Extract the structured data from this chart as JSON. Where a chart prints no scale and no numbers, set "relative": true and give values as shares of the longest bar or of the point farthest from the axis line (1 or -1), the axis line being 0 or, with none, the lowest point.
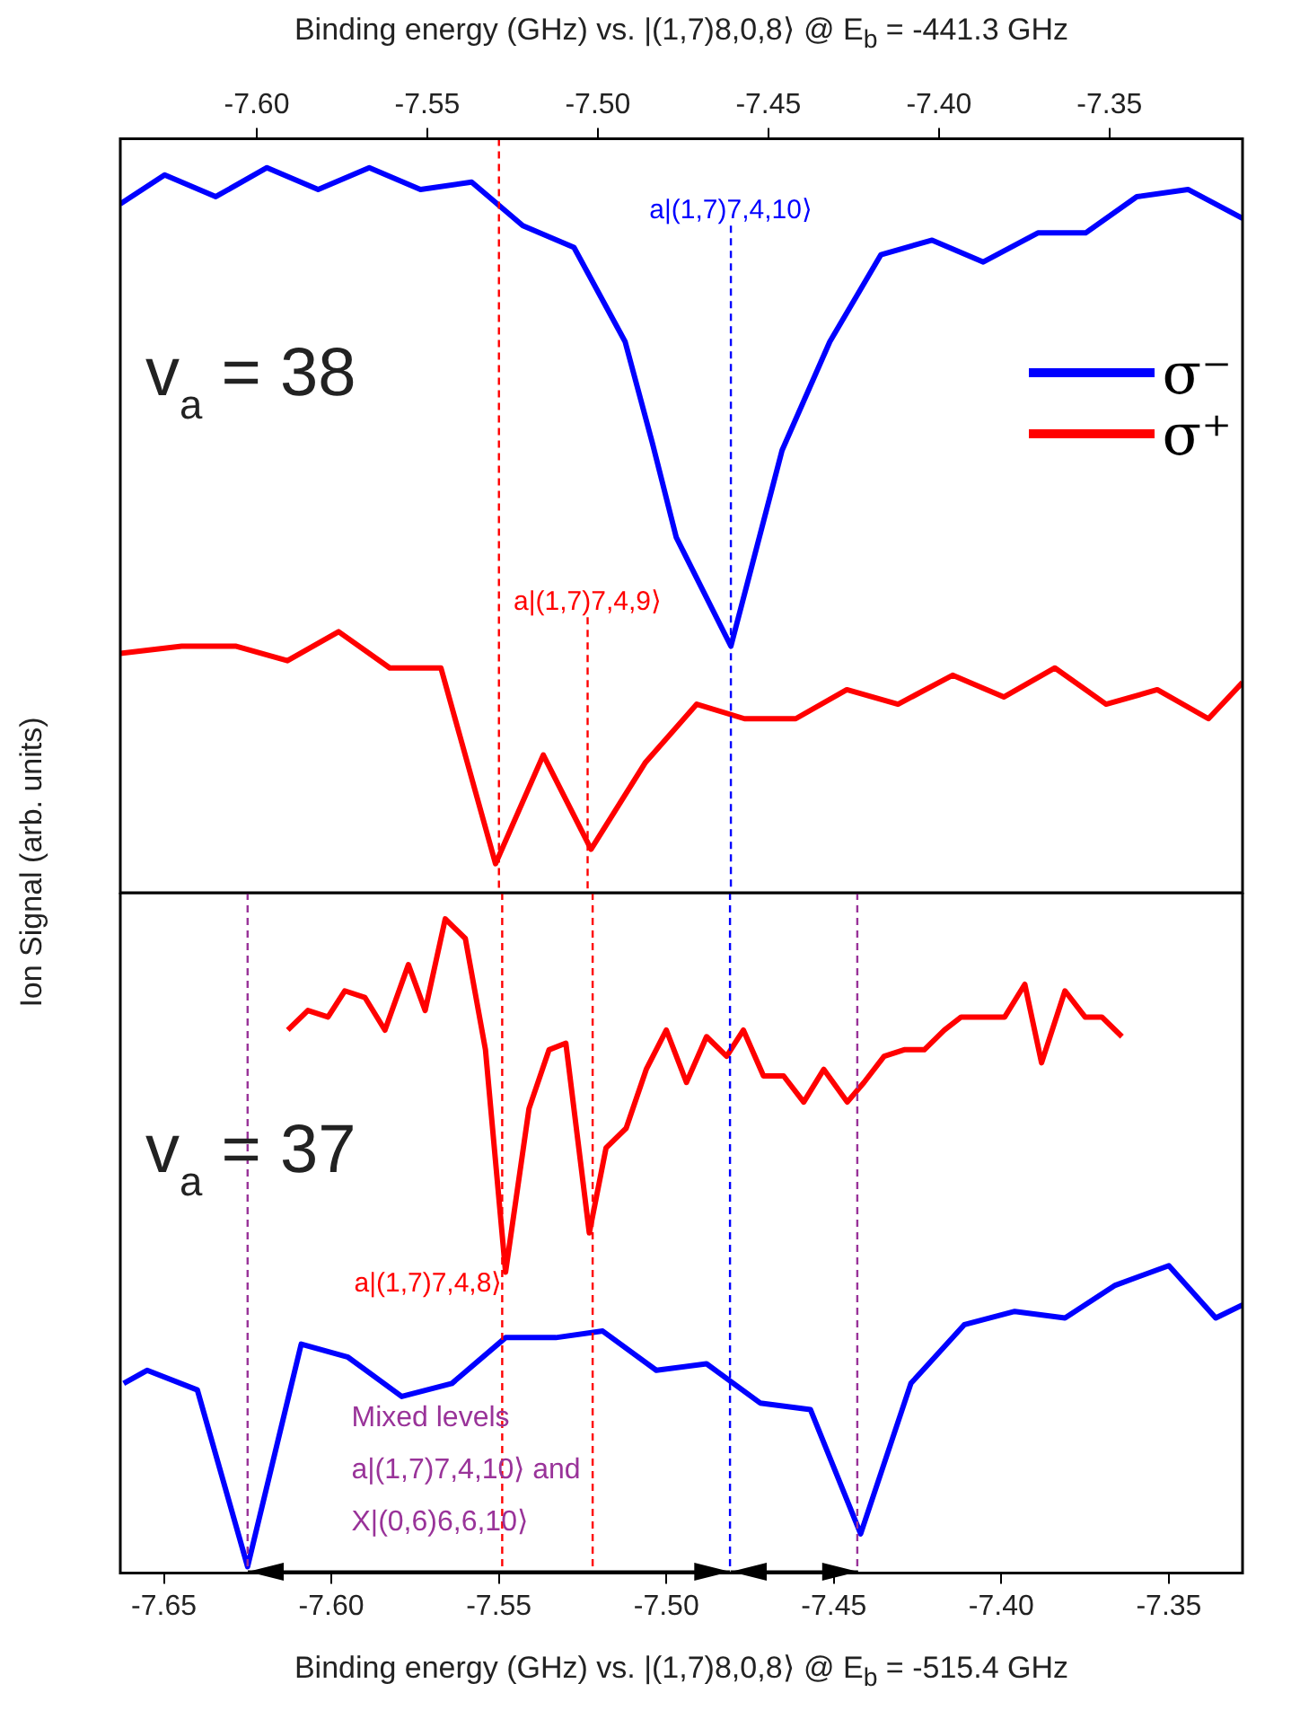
{
  "chart_data": [
    {
      "type": "line",
      "xlabel": "Binding energy (GHz) vs. |(1,7)8,0,8⟩ @ E$_{b}$ = -441.3 GHz",
      "ylabel": "Ion Signal (arb. units)",
      "relative": true,
      "xlim": [
        -7.64,
        -7.311
      ],
      "xticks": [
        {
          "value": -7.6,
          "label": "-7.60"
        },
        {
          "value": -7.55,
          "label": "-7.55"
        },
        {
          "value": -7.5,
          "label": "-7.50"
        },
        {
          "value": -7.45,
          "label": "-7.45"
        },
        {
          "value": -7.4,
          "label": "-7.40"
        },
        {
          "value": -7.35,
          "label": "-7.35"
        }
      ],
      "legend": "top right",
      "series": [
        {
          "name": "σ⁻",
          "color": "#0000ff",
          "x": [
            -7.64,
            -7.627,
            -7.612,
            -7.597,
            -7.582,
            -7.567,
            -7.552,
            -7.537,
            -7.522,
            -7.507,
            -7.492,
            -7.484,
            -7.477,
            -7.461,
            -7.446,
            -7.432,
            -7.417,
            -7.402,
            -7.387,
            -7.371,
            -7.357,
            -7.342,
            -7.327,
            -7.311
          ],
          "values": [
            0.95,
            0.99,
            0.96,
            1.0,
            0.97,
            1.0,
            0.97,
            0.98,
            0.92,
            0.89,
            0.76,
            0.62,
            0.49,
            0.34,
            0.61,
            0.76,
            0.88,
            0.9,
            0.87,
            0.91,
            0.91,
            0.96,
            0.97,
            0.93
          ]
        },
        {
          "name": "σ⁺",
          "color": "#ff0000",
          "x": [
            -7.64,
            -7.622,
            -7.606,
            -7.591,
            -7.576,
            -7.561,
            -7.546,
            -7.53,
            -7.516,
            -7.502,
            -7.486,
            -7.471,
            -7.457,
            -7.442,
            -7.427,
            -7.412,
            -7.396,
            -7.381,
            -7.366,
            -7.351,
            -7.336,
            -7.321,
            -7.311
          ],
          "values": [
            0.33,
            0.34,
            0.34,
            0.32,
            0.36,
            0.31,
            0.31,
            0.04,
            0.19,
            0.06,
            0.18,
            0.26,
            0.24,
            0.24,
            0.28,
            0.26,
            0.3,
            0.27,
            0.31,
            0.26,
            0.28,
            0.24,
            0.29
          ]
        }
      ],
      "ref_lines": [
        {
          "axis": "x",
          "value": -7.529,
          "color": "#ff0000",
          "line_style": "dashed"
        },
        {
          "axis": "x",
          "value": -7.503,
          "color": "#ff0000",
          "line_style": "dashed"
        },
        {
          "axis": "x",
          "value": -7.461,
          "color": "#0000ff",
          "line_style": "dashed"
        }
      ],
      "annotations": [
        "v$_{a}$ = 38",
        {
          "text": "a|(1,7)7,4,10⟩",
          "x": -7.461,
          "y": 0.93
        },
        {
          "text": "a|(1,7)7,4,9⟩",
          "x": -7.503,
          "y": 0.39
        }
      ]
    },
    {
      "type": "line",
      "xlabel": "Binding energy (GHz) vs. |(1,7)8,0,8⟩ @ E$_{b}$ = -515.4 GHz",
      "relative": true,
      "xlim": [
        -7.663,
        -7.328
      ],
      "xticks": [
        {
          "value": -7.65,
          "label": "-7.65"
        },
        {
          "value": -7.6,
          "label": "-7.60"
        },
        {
          "value": -7.55,
          "label": "-7.55"
        },
        {
          "value": -7.5,
          "label": "-7.50"
        },
        {
          "value": -7.45,
          "label": "-7.45"
        },
        {
          "value": -7.4,
          "label": "-7.40"
        },
        {
          "value": -7.35,
          "label": "-7.35"
        }
      ],
      "series": [
        {
          "color": "#ff0000",
          "x": [
            -7.613,
            -7.607,
            -7.601,
            -7.596,
            -7.59,
            -7.584,
            -7.577,
            -7.572,
            -7.566,
            -7.56,
            -7.554,
            -7.548,
            -7.541,
            -7.535,
            -7.53,
            -7.523,
            -7.518,
            -7.512,
            -7.506,
            -7.5,
            -7.494,
            -7.488,
            -7.482,
            -7.477,
            -7.471,
            -7.465,
            -7.459,
            -7.453,
            -7.446,
            -7.441,
            -7.435,
            -7.429,
            -7.423,
            -7.417,
            -7.412,
            -7.405,
            -7.399,
            -7.393,
            -7.388,
            -7.381,
            -7.375,
            -7.37,
            -7.364
          ],
          "values": [
            0.83,
            0.86,
            0.85,
            0.89,
            0.88,
            0.83,
            0.93,
            0.86,
            1.0,
            0.97,
            0.8,
            0.46,
            0.71,
            0.8,
            0.81,
            0.52,
            0.65,
            0.68,
            0.77,
            0.83,
            0.75,
            0.82,
            0.79,
            0.83,
            0.76,
            0.76,
            0.72,
            0.77,
            0.72,
            0.75,
            0.79,
            0.8,
            0.8,
            0.83,
            0.85,
            0.85,
            0.85,
            0.9,
            0.78,
            0.89,
            0.85,
            0.85,
            0.82
          ]
        },
        {
          "color": "#0000ff",
          "x": [
            -7.662,
            -7.655,
            -7.64,
            -7.625,
            -7.609,
            -7.595,
            -7.579,
            -7.564,
            -7.548,
            -7.533,
            -7.519,
            -7.503,
            -7.488,
            -7.472,
            -7.457,
            -7.442,
            -7.427,
            -7.411,
            -7.396,
            -7.381,
            -7.366,
            -7.35,
            -7.336,
            -7.328
          ],
          "values": [
            0.29,
            0.31,
            0.28,
            0.01,
            0.35,
            0.33,
            0.27,
            0.29,
            0.36,
            0.36,
            0.37,
            0.31,
            0.32,
            0.26,
            0.25,
            0.06,
            0.29,
            0.38,
            0.4,
            0.39,
            0.44,
            0.47,
            0.39,
            0.41
          ]
        }
      ],
      "ref_lines": [
        {
          "axis": "x",
          "value": -7.625,
          "color": "#993399",
          "line_style": "dashed"
        },
        {
          "axis": "x",
          "value": -7.549,
          "color": "#ff0000",
          "line_style": "dashed"
        },
        {
          "axis": "x",
          "value": -7.522,
          "color": "#ff0000",
          "line_style": "dashed"
        },
        {
          "axis": "x",
          "value": -7.481,
          "color": "#0000ff",
          "line_style": "dashed"
        },
        {
          "axis": "x",
          "value": -7.443,
          "color": "#993399",
          "line_style": "dashed"
        }
      ],
      "annotations": [
        "v$_{a}$ = 37",
        "Mixed levels\na|(1,7)7,4,10⟩ and\nX|(0,6)6,6,10⟩",
        {
          "text": "a|(1,7)7,4,8⟩",
          "x": -7.549,
          "y": 0.43
        }
      ]
    }
  ]
}
